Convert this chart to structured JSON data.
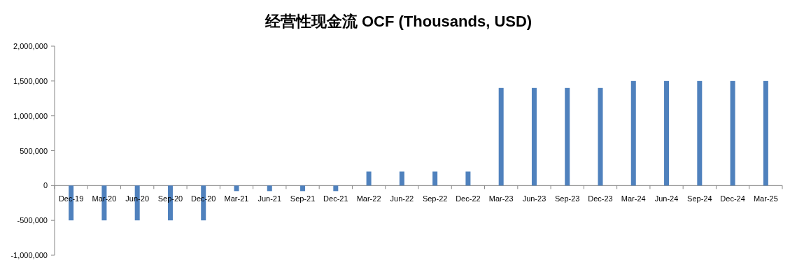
{
  "chart_data": {
    "type": "bar",
    "title": "经营性现金流 OCF (Thousands, USD)",
    "categories": [
      "Dec-19",
      "Mar-20",
      "Jun-20",
      "Sep-20",
      "Dec-20",
      "Mar-21",
      "Jun-21",
      "Sep-21",
      "Dec-21",
      "Mar-22",
      "Jun-22",
      "Sep-22",
      "Dec-22",
      "Mar-23",
      "Jun-23",
      "Sep-23",
      "Dec-23",
      "Mar-24",
      "Jun-24",
      "Sep-24",
      "Dec-24",
      "Mar-25"
    ],
    "values": [
      -500000,
      -500000,
      -500000,
      -500000,
      -500000,
      -80000,
      -80000,
      -80000,
      -80000,
      200000,
      200000,
      200000,
      200000,
      1400000,
      1400000,
      1400000,
      1400000,
      1500000,
      1500000,
      1500000,
      1500000,
      1500000
    ],
    "color": "#4f81bd",
    "ylim": [
      -1000000,
      2000000
    ],
    "yticks": [
      {
        "value": -1000000,
        "label": "-1,000,000"
      },
      {
        "value": -500000,
        "label": "-500,000"
      },
      {
        "value": 0,
        "label": "0"
      },
      {
        "value": 500000,
        "label": "500,000"
      },
      {
        "value": 1000000,
        "label": "1,000,000"
      },
      {
        "value": 1500000,
        "label": "1,500,000"
      },
      {
        "value": 2000000,
        "label": "2,000,000"
      }
    ],
    "grid": false
  }
}
